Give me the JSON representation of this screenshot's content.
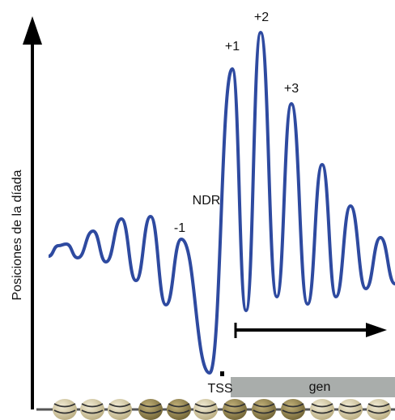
{
  "axis_label": "Posiciones de la díada",
  "peak_labels": [
    "+1",
    "+2",
    "+3",
    "-1"
  ],
  "region_label": "NDR",
  "tss_label": "TSS",
  "gene_label": "gen"
}
